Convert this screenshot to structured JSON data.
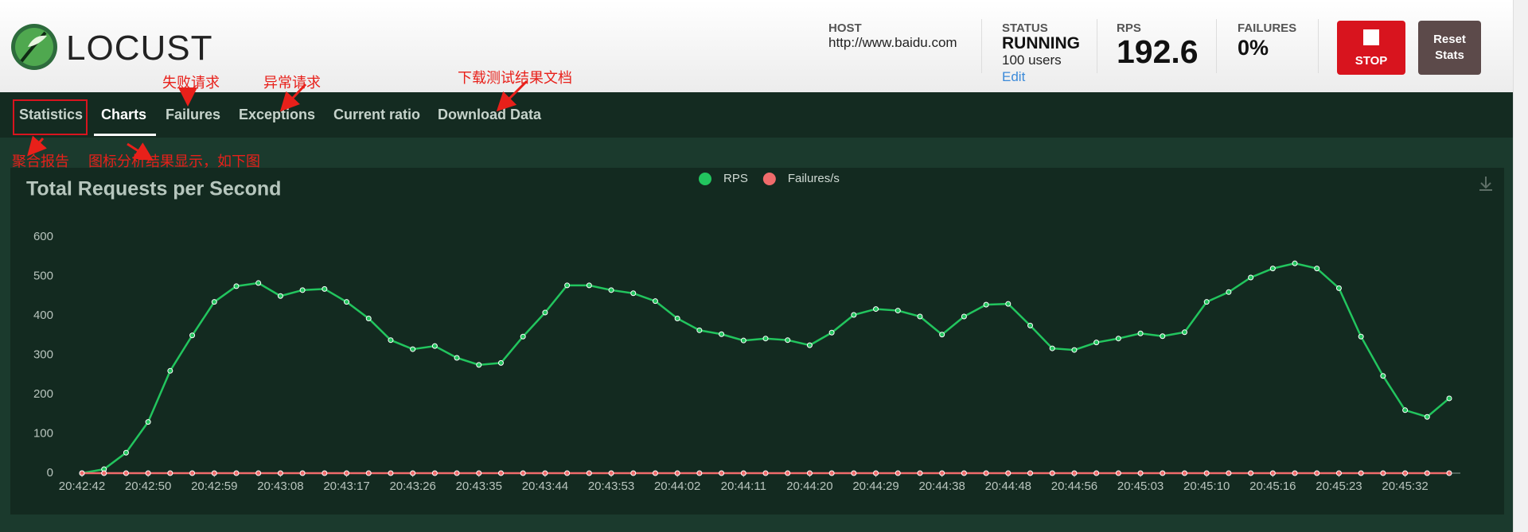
{
  "header": {
    "logo": "LOCUST",
    "host_label": "HOST",
    "host": "http://www.baidu.com",
    "status_label": "STATUS",
    "status": "RUNNING",
    "users": "100 users",
    "edit": "Edit",
    "rps_label": "RPS",
    "rps": "192.6",
    "failures_label": "FAILURES",
    "failures": "0%",
    "stop": "STOP",
    "reset": "Reset Stats"
  },
  "tabs": [
    "Statistics",
    "Charts",
    "Failures",
    "Exceptions",
    "Current ratio",
    "Download Data"
  ],
  "annotations": [
    "失败请求",
    "异常请求",
    "下载测试结果文档",
    "聚合报告",
    "图标分析结果显示，如下图"
  ],
  "chart_data": {
    "type": "line",
    "title": "Total Requests per Second",
    "categories": [
      "20:42:42",
      null,
      null,
      "20:42:50",
      null,
      null,
      "20:42:59",
      null,
      null,
      "20:43:08",
      null,
      null,
      "20:43:17",
      null,
      null,
      "20:43:26",
      null,
      null,
      "20:43:35",
      null,
      null,
      "20:43:44",
      null,
      null,
      "20:43:53",
      null,
      null,
      "20:44:02",
      null,
      null,
      "20:44:11",
      null,
      null,
      "20:44:20",
      null,
      null,
      "20:44:29",
      null,
      null,
      "20:44:38",
      null,
      null,
      "20:44:48",
      null,
      null,
      "20:44:56",
      null,
      null,
      "20:45:03",
      null,
      null,
      "20:45:10",
      null,
      null,
      "20:45:16",
      null,
      null,
      "20:45:23",
      null,
      null,
      "20:45:32",
      null,
      null
    ],
    "series": [
      {
        "name": "RPS",
        "color": "#22c55e",
        "values": [
          0,
          10,
          52,
          130,
          260,
          350,
          435,
          475,
          483,
          450,
          465,
          468,
          435,
          393,
          338,
          315,
          323,
          293,
          275,
          280,
          347,
          408,
          477,
          477,
          465,
          457,
          437,
          393,
          363,
          353,
          337,
          342,
          338,
          325,
          357,
          402,
          417,
          413,
          398,
          352,
          398,
          428,
          430,
          375,
          317,
          313,
          332,
          342,
          355,
          348,
          358,
          435,
          460,
          497,
          520,
          533,
          520,
          470,
          347,
          247,
          160,
          143,
          190
        ]
      },
      {
        "name": "Failures/s",
        "color": "#f06b6b",
        "values": [
          0,
          0,
          0,
          0,
          0,
          0,
          0,
          0,
          0,
          0,
          0,
          0,
          0,
          0,
          0,
          0,
          0,
          0,
          0,
          0,
          0,
          0,
          0,
          0,
          0,
          0,
          0,
          0,
          0,
          0,
          0,
          0,
          0,
          0,
          0,
          0,
          0,
          0,
          0,
          0,
          0,
          0,
          0,
          0,
          0,
          0,
          0,
          0,
          0,
          0,
          0,
          0,
          0,
          0,
          0,
          0,
          0,
          0,
          0,
          0,
          0,
          0,
          0
        ]
      }
    ],
    "ylim": [
      0,
      600
    ],
    "yticks": [
      0,
      100,
      200,
      300,
      400,
      500,
      600
    ],
    "grid": false,
    "legend": "top"
  }
}
